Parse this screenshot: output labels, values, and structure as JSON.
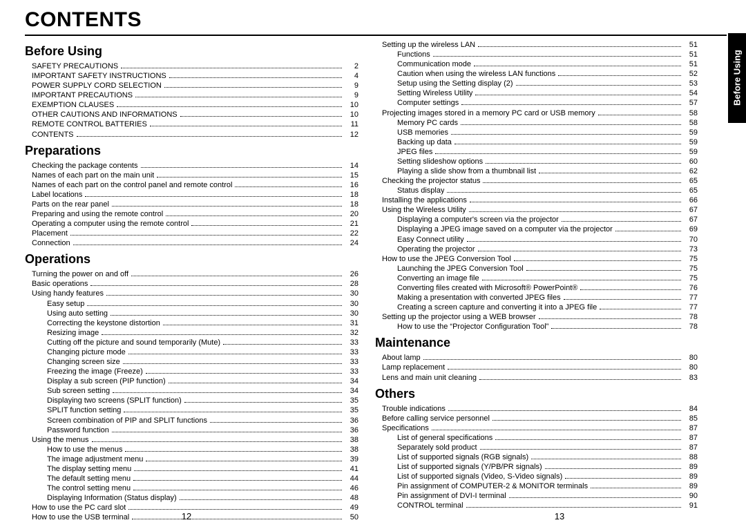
{
  "title": "CONTENTS",
  "side_tab": "Before Using",
  "page_left": "12",
  "page_right": "13",
  "left_sections": [
    {
      "title": "Before Using",
      "items": [
        {
          "label": "SAFETY PRECAUTIONS",
          "page": "2",
          "indent": 1
        },
        {
          "label": "IMPORTANT SAFETY INSTRUCTIONS",
          "page": "4",
          "indent": 1
        },
        {
          "label": "POWER SUPPLY CORD SELECTION",
          "page": "9",
          "indent": 1
        },
        {
          "label": "IMPORTANT PRECAUTIONS",
          "page": "9",
          "indent": 1
        },
        {
          "label": "EXEMPTION CLAUSES",
          "page": "10",
          "indent": 1
        },
        {
          "label": "OTHER CAUTIONS AND INFORMATIONS",
          "page": "10",
          "indent": 1
        },
        {
          "label": "REMOTE CONTROL BATTERIES",
          "page": "11",
          "indent": 1
        },
        {
          "label": "CONTENTS",
          "page": "12",
          "indent": 1
        }
      ]
    },
    {
      "title": "Preparations",
      "items": [
        {
          "label": "Checking the package contents",
          "page": "14",
          "indent": 1
        },
        {
          "label": "Names of each part on the main unit",
          "page": "15",
          "indent": 1
        },
        {
          "label": "Names of each part on the control panel and remote control",
          "page": "16",
          "indent": 1
        },
        {
          "label": "Label locations",
          "page": "18",
          "indent": 1
        },
        {
          "label": "Parts on the rear panel",
          "page": "18",
          "indent": 1
        },
        {
          "label": "Preparing and using the remote control",
          "page": "20",
          "indent": 1
        },
        {
          "label": "Operating a computer using the remote control",
          "page": "21",
          "indent": 1
        },
        {
          "label": "Placement",
          "page": "22",
          "indent": 1
        },
        {
          "label": "Connection",
          "page": "24",
          "indent": 1
        }
      ]
    },
    {
      "title": "Operations",
      "items": [
        {
          "label": "Turning the power on and off",
          "page": "26",
          "indent": 1
        },
        {
          "label": "Basic operations",
          "page": "28",
          "indent": 1
        },
        {
          "label": "Using handy features",
          "page": "30",
          "indent": 1
        },
        {
          "label": "Easy setup",
          "page": "30",
          "indent": 2
        },
        {
          "label": "Using auto setting",
          "page": "30",
          "indent": 2
        },
        {
          "label": "Correcting the keystone distortion",
          "page": "31",
          "indent": 2
        },
        {
          "label": "Resizing image",
          "page": "32",
          "indent": 2
        },
        {
          "label": "Cutting off the picture and sound temporarily (Mute)",
          "page": "33",
          "indent": 2
        },
        {
          "label": "Changing picture mode",
          "page": "33",
          "indent": 2
        },
        {
          "label": "Changing screen size",
          "page": "33",
          "indent": 2
        },
        {
          "label": "Freezing the image (Freeze)",
          "page": "33",
          "indent": 2
        },
        {
          "label": "Display a sub screen (PIP function)",
          "page": "34",
          "indent": 2
        },
        {
          "label": "Sub screen setting",
          "page": "34",
          "indent": 2
        },
        {
          "label": "Displaying two screens (SPLIT function)",
          "page": "35",
          "indent": 2
        },
        {
          "label": "SPLIT function setting",
          "page": "35",
          "indent": 2
        },
        {
          "label": "Screen combination of PIP and SPLIT functions",
          "page": "36",
          "indent": 2
        },
        {
          "label": "Password function",
          "page": "36",
          "indent": 2
        },
        {
          "label": "Using the menus",
          "page": "38",
          "indent": 1
        },
        {
          "label": "How to use the menus",
          "page": "38",
          "indent": 2
        },
        {
          "label": "The image adjustment menu",
          "page": "39",
          "indent": 2
        },
        {
          "label": "The display setting menu",
          "page": "41",
          "indent": 2
        },
        {
          "label": "The default setting menu",
          "page": "44",
          "indent": 2
        },
        {
          "label": "The control setting menu",
          "page": "46",
          "indent": 2
        },
        {
          "label": "Displaying Information (Status display)",
          "page": "48",
          "indent": 2
        },
        {
          "label": "How to use the PC card slot",
          "page": "49",
          "indent": 1
        },
        {
          "label": "How to use the USB terminal",
          "page": "50",
          "indent": 1
        }
      ]
    }
  ],
  "right_sections": [
    {
      "title": null,
      "items": [
        {
          "label": "Setting up the wireless LAN",
          "page": "51",
          "indent": 1
        },
        {
          "label": "Functions",
          "page": "51",
          "indent": 2
        },
        {
          "label": "Communication mode",
          "page": "51",
          "indent": 2
        },
        {
          "label": "Caution when using the wireless LAN functions",
          "page": "52",
          "indent": 2
        },
        {
          "label": "Setup using the Setting display (2)",
          "page": "53",
          "indent": 2
        },
        {
          "label": "Setting Wireless Utility",
          "page": "54",
          "indent": 2
        },
        {
          "label": "Computer settings",
          "page": "57",
          "indent": 2
        },
        {
          "label": "Projecting images stored in a memory PC card or USB memory",
          "page": "58",
          "indent": 1
        },
        {
          "label": "Memory PC cards",
          "page": "58",
          "indent": 2
        },
        {
          "label": "USB memories",
          "page": "59",
          "indent": 2
        },
        {
          "label": "Backing up data",
          "page": "59",
          "indent": 2
        },
        {
          "label": "JPEG files",
          "page": "59",
          "indent": 2
        },
        {
          "label": "Setting slideshow options",
          "page": "60",
          "indent": 2
        },
        {
          "label": "Playing a slide show from a thumbnail list",
          "page": "62",
          "indent": 2
        },
        {
          "label": "Checking the projector status",
          "page": "65",
          "indent": 1
        },
        {
          "label": "Status display",
          "page": "65",
          "indent": 2
        },
        {
          "label": "Installing the applications",
          "page": "66",
          "indent": 1
        },
        {
          "label": "Using the Wireless Utility",
          "page": "67",
          "indent": 1
        },
        {
          "label": "Displaying a computer's screen via the projector",
          "page": "67",
          "indent": 2
        },
        {
          "label": "Displaying a JPEG image saved on a computer via the projector",
          "page": "69",
          "indent": 2
        },
        {
          "label": "Easy Connect utility",
          "page": "70",
          "indent": 2
        },
        {
          "label": "Operating the projector",
          "page": "73",
          "indent": 2
        },
        {
          "label": "How to use the JPEG Conversion Tool",
          "page": "75",
          "indent": 1
        },
        {
          "label": "Launching the JPEG Conversion Tool",
          "page": "75",
          "indent": 2
        },
        {
          "label": "Converting an image file",
          "page": "75",
          "indent": 2
        },
        {
          "label": "Converting files created with Microsoft® PowerPoint®",
          "page": "76",
          "indent": 2
        },
        {
          "label": "Making a presentation with converted JPEG files",
          "page": "77",
          "indent": 2
        },
        {
          "label": "Creating a screen capture and converting it into a JPEG file",
          "page": "77",
          "indent": 2
        },
        {
          "label": "Setting up the projector using a WEB browser",
          "page": "78",
          "indent": 1
        },
        {
          "label": "How to use the “Projector Configuration Tool”",
          "page": "78",
          "indent": 2
        }
      ]
    },
    {
      "title": "Maintenance",
      "items": [
        {
          "label": "About lamp",
          "page": "80",
          "indent": 1
        },
        {
          "label": "Lamp replacement",
          "page": "80",
          "indent": 1
        },
        {
          "label": "Lens and main unit cleaning",
          "page": "83",
          "indent": 1
        }
      ]
    },
    {
      "title": "Others",
      "items": [
        {
          "label": "Trouble indications",
          "page": "84",
          "indent": 1
        },
        {
          "label": "Before calling service personnel",
          "page": "85",
          "indent": 1
        },
        {
          "label": "Specifications",
          "page": "87",
          "indent": 1
        },
        {
          "label": "List of general specifications",
          "page": "87",
          "indent": 2
        },
        {
          "label": "Separately sold product",
          "page": "87",
          "indent": 2
        },
        {
          "label": "List of supported signals (RGB signals)",
          "page": "88",
          "indent": 2
        },
        {
          "label": "List of supported signals (Y/PB/PR signals)",
          "page": "89",
          "indent": 2
        },
        {
          "label": "List of supported signals (Video, S-Video signals)",
          "page": "89",
          "indent": 2
        },
        {
          "label": "Pin assignment of COMPUTER-2 & MONITOR terminals",
          "page": "89",
          "indent": 2
        },
        {
          "label": "Pin assignment of DVI-I terminal",
          "page": "90",
          "indent": 2
        },
        {
          "label": "CONTROL terminal",
          "page": "91",
          "indent": 2
        }
      ]
    }
  ]
}
